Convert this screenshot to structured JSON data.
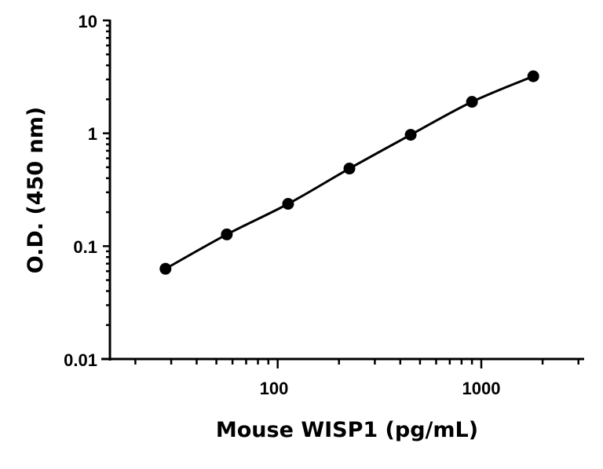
{
  "chart_data": {
    "type": "scatter",
    "title": "",
    "xlabel": "Mouse WISP1 (pg/mL)",
    "ylabel": "O.D. (450 nm)",
    "x_scale": "log",
    "y_scale": "log",
    "xlim": [
      15,
      3200
    ],
    "ylim": [
      0.01,
      10
    ],
    "x_ticks": [
      "100",
      "1000"
    ],
    "y_ticks": [
      "0.01",
      "0.1",
      "1",
      "10"
    ],
    "grid": false,
    "fit_line": true,
    "color": "#000000",
    "series": [
      {
        "x": [
          28.125,
          56.25,
          112.5,
          225,
          450,
          900,
          1800
        ],
        "y": [
          0.063,
          0.127,
          0.237,
          0.487,
          0.97,
          1.9,
          3.2
        ]
      }
    ]
  }
}
